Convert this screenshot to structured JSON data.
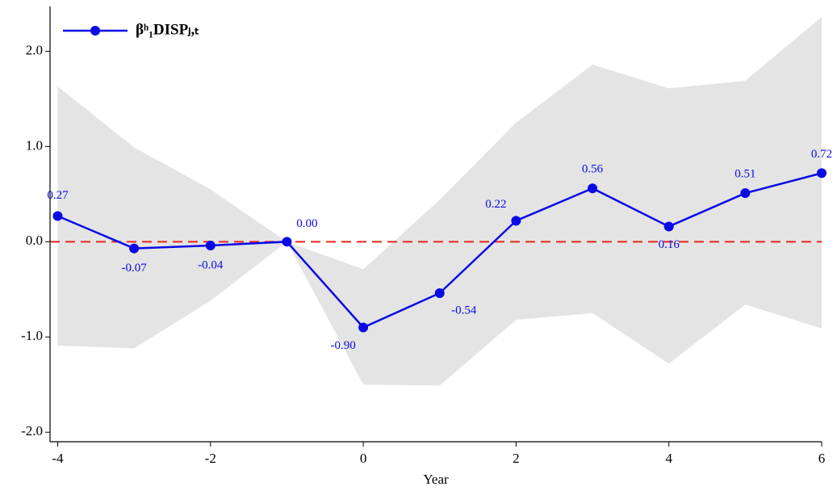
{
  "chart_data": {
    "type": "line",
    "x_label": "Year",
    "x": [
      -4,
      -3,
      -2,
      -1,
      0,
      1,
      2,
      3,
      4,
      5,
      6
    ],
    "series": [
      {
        "name": "βʰ₁DISPⱼ,ₜ",
        "color": "#0a0ae6",
        "values": [
          0.27,
          -0.07,
          -0.04,
          0.0,
          -0.9,
          -0.54,
          0.22,
          0.56,
          0.16,
          0.51,
          0.72
        ],
        "value_labels": [
          "0.27",
          "-0.07",
          "-0.04",
          "0.00",
          "-0.90",
          "-0.54",
          "0.22",
          "0.56",
          "0.16",
          "0.51",
          "0.72"
        ],
        "upper": [
          1.63,
          0.99,
          0.55,
          0.0,
          -0.29,
          0.44,
          1.25,
          1.86,
          1.61,
          1.69,
          2.36
        ],
        "lower": [
          -1.09,
          -1.12,
          -0.62,
          0.0,
          -1.5,
          -1.51,
          -0.82,
          -0.75,
          -1.28,
          -0.66,
          -0.91
        ],
        "band_color": "#e4e4e4"
      }
    ],
    "reference_line": {
      "value": 0,
      "color": "#e8251f"
    },
    "xlim": [
      -4.1,
      6.0
    ],
    "xticks": [
      -4,
      -2,
      0,
      2,
      4,
      6
    ],
    "ylim": [
      -2.1,
      2.47
    ],
    "yticks": [
      {
        "value": -2,
        "label": "-2.0"
      },
      {
        "value": -1,
        "label": "-1.0"
      },
      {
        "value": 0,
        "label": "0.0"
      },
      {
        "value": 1,
        "label": "1.0"
      },
      {
        "value": 2,
        "label": "2.0"
      }
    ],
    "legend": "top-left"
  }
}
